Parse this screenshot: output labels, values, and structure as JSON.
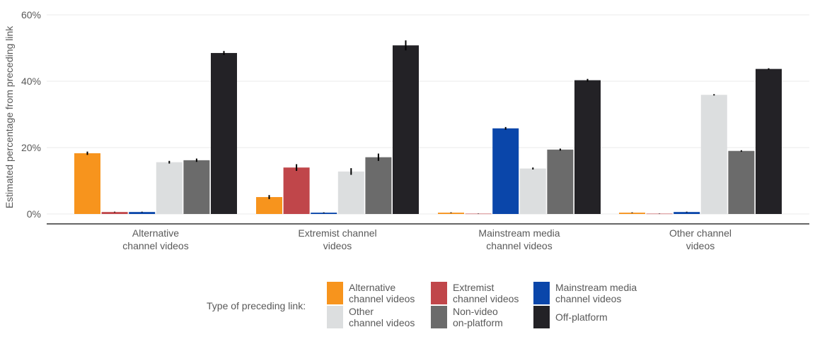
{
  "chart_data": {
    "type": "bar",
    "ylabel": "Estimated percentage from preceding link",
    "ylim": [
      0,
      60
    ],
    "yticks": [
      0,
      20,
      40,
      60
    ],
    "ytick_labels": [
      "0%",
      "20%",
      "40%",
      "60%"
    ],
    "grid": true,
    "legend_position": "bottom",
    "categories": [
      "Alternative\nchannel videos",
      "Extremist channel\nvideos",
      "Mainstream media\nchannel videos",
      "Other channel\nvideos"
    ],
    "series": [
      {
        "name": "Alternative\nchannel videos",
        "color": "#f7941d",
        "values": [
          18.3,
          5.1,
          0.4,
          0.4
        ],
        "errors": [
          0.5,
          0.6,
          0.1,
          0.1
        ]
      },
      {
        "name": "Extremist\nchannel videos",
        "color": "#c0464a",
        "values": [
          0.6,
          14.0,
          0.1,
          0.1
        ],
        "errors": [
          0.1,
          1.0,
          0.05,
          0.05
        ]
      },
      {
        "name": "Mainstream media\nchannel videos",
        "color": "#0a46aa",
        "values": [
          0.6,
          0.4,
          25.8,
          0.6
        ],
        "errors": [
          0.1,
          0.1,
          0.4,
          0.1
        ]
      },
      {
        "name": "Other\nchannel videos",
        "color": "#dcdedf",
        "values": [
          15.6,
          12.8,
          13.7,
          35.9
        ],
        "errors": [
          0.4,
          1.0,
          0.3,
          0.2
        ]
      },
      {
        "name": "Non-video\non-platform",
        "color": "#6b6b6b",
        "values": [
          16.2,
          17.1,
          19.4,
          19.0
        ],
        "errors": [
          0.5,
          1.1,
          0.3,
          0.2
        ]
      },
      {
        "name": "Off-platform",
        "color": "#232226",
        "values": [
          48.5,
          50.8,
          40.3,
          43.7
        ],
        "errors": [
          0.6,
          1.5,
          0.4,
          0.2
        ]
      }
    ]
  },
  "legend": {
    "title": "Type of preceding link:"
  }
}
